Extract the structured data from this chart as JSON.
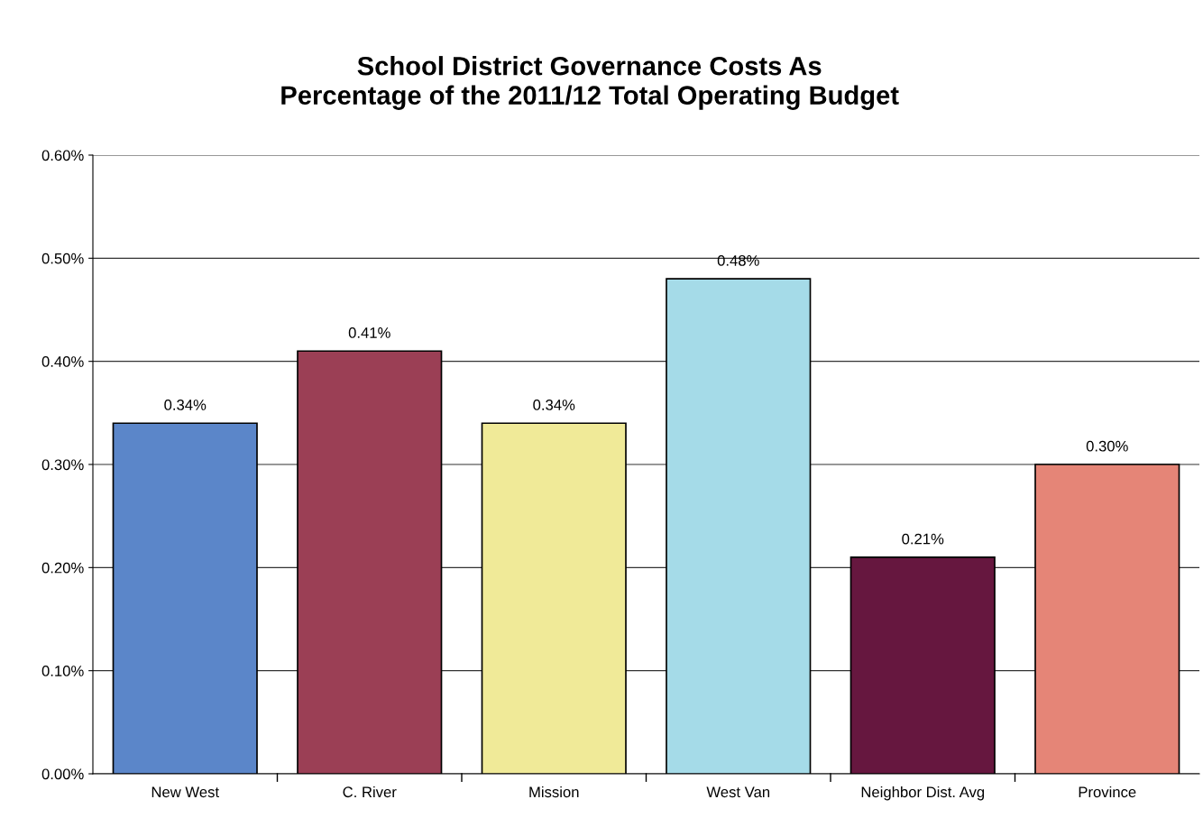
{
  "chart_data": {
    "type": "bar",
    "title": "School District Governance Costs As\nPercentage of the 2011/12 Total Operating Budget",
    "categories": [
      "New West",
      "C. River",
      "Mission",
      "West Van",
      "Neighbor Dist. Avg",
      "Province"
    ],
    "values": [
      0.34,
      0.41,
      0.34,
      0.48,
      0.21,
      0.3
    ],
    "value_labels": [
      "0.34%",
      "0.41%",
      "0.34%",
      "0.48%",
      "0.21%",
      "0.30%"
    ],
    "colors": [
      "#5b86c9",
      "#9b3f55",
      "#f0ea98",
      "#a5dbe8",
      "#66173f",
      "#e58577"
    ],
    "ylim": [
      0,
      0.6
    ],
    "yticks": [
      {
        "value": 0,
        "label": "0.00%"
      },
      {
        "value": 0.1,
        "label": "0.10%"
      },
      {
        "value": 0.2,
        "label": "0.20%"
      },
      {
        "value": 0.3,
        "label": "0.30%"
      },
      {
        "value": 0.4,
        "label": "0.40%"
      },
      {
        "value": 0.5,
        "label": "0.50%"
      },
      {
        "value": 0.6,
        "label": "0.60%"
      }
    ],
    "grid": "y"
  }
}
